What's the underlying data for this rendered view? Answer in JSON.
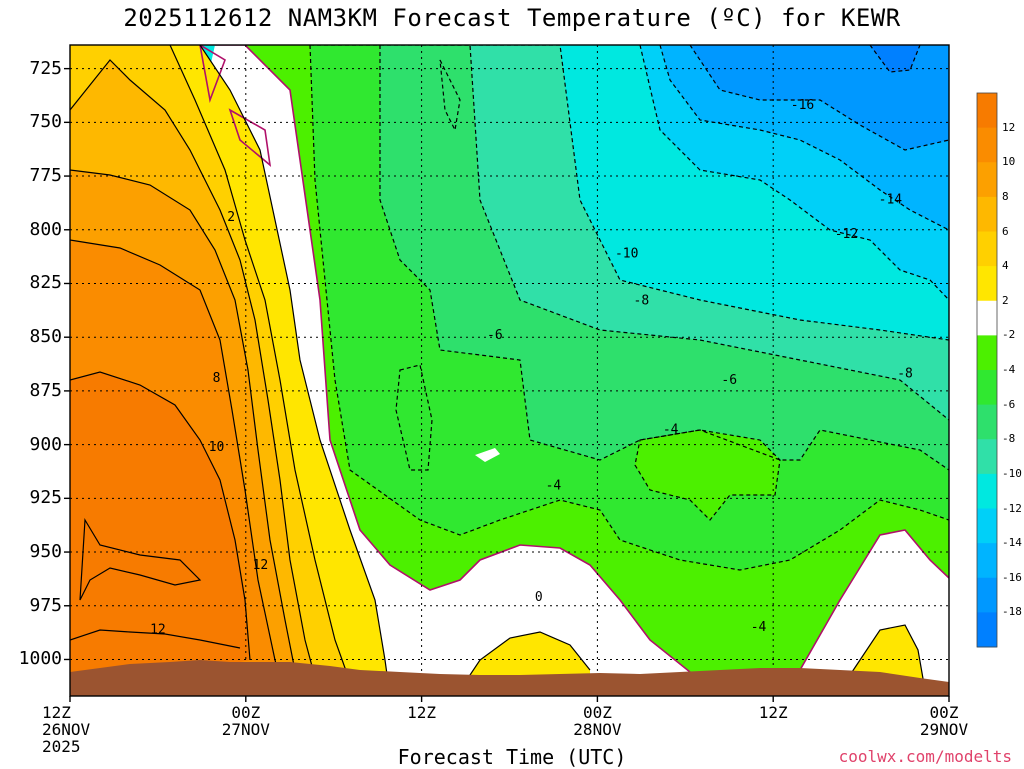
{
  "title": "2025112612 NAM3KM Forecast Temperature (ºC) for KEWR",
  "credit": "coolwx.com/modelts",
  "colors": {
    "terrain": "#9b5430",
    "zero_line": "#b0106a"
  },
  "chart_data": {
    "type": "contour",
    "title": "2025112612 NAM3KM Forecast Temperature (ºC) for KEWR",
    "xlabel": "Forecast Time (UTC)",
    "ylabel": "",
    "x_ticks": [
      {
        "label": "12Z\n26NOV\n2025",
        "hour": 0
      },
      {
        "label": "00Z\n27NOV",
        "hour": 12
      },
      {
        "label": "12Z",
        "hour": 24
      },
      {
        "label": "00Z\n28NOV",
        "hour": 36
      },
      {
        "label": "12Z",
        "hour": 48
      },
      {
        "label": "00Z\n29NOV",
        "hour": 60
      }
    ],
    "xlim": [
      0,
      60
    ],
    "y_ticks": [
      725,
      750,
      775,
      800,
      825,
      850,
      875,
      900,
      925,
      950,
      975,
      1000
    ],
    "ylim": [
      1017,
      714
    ],
    "grid": true,
    "colorbar": {
      "labels": [
        12,
        10,
        8,
        6,
        4,
        2,
        -2,
        -4,
        -6,
        -8,
        -10,
        -12,
        -14,
        -16,
        -18
      ],
      "bins": [
        {
          "range": [
            12,
            14
          ],
          "color": "#f77b00"
        },
        {
          "range": [
            10,
            12
          ],
          "color": "#fa8c00"
        },
        {
          "range": [
            8,
            10
          ],
          "color": "#fca000"
        },
        {
          "range": [
            6,
            8
          ],
          "color": "#feb800"
        },
        {
          "range": [
            4,
            6
          ],
          "color": "#ffd000"
        },
        {
          "range": [
            2,
            4
          ],
          "color": "#ffe600"
        },
        {
          "range": [
            -2,
            2
          ],
          "color": "#ffffff"
        },
        {
          "range": [
            -4,
            -2
          ],
          "color": "#4cf000"
        },
        {
          "range": [
            -6,
            -4
          ],
          "color": "#30e830"
        },
        {
          "range": [
            -8,
            -6
          ],
          "color": "#2ee06c"
        },
        {
          "range": [
            -10,
            -8
          ],
          "color": "#30e0a8"
        },
        {
          "range": [
            -12,
            -10
          ],
          "color": "#00e8e0"
        },
        {
          "range": [
            -14,
            -12
          ],
          "color": "#00d0f8"
        },
        {
          "range": [
            -16,
            -14
          ],
          "color": "#00b4ff"
        },
        {
          "range": [
            -18,
            -16
          ],
          "color": "#0098ff"
        },
        {
          "range": [
            -20,
            -18
          ],
          "color": "#0080ff"
        }
      ]
    },
    "contour_labels": [
      {
        "text": "2",
        "hour": 11,
        "p": 794
      },
      {
        "text": "8",
        "hour": 10,
        "p": 869
      },
      {
        "text": "10",
        "hour": 10,
        "p": 901
      },
      {
        "text": "12",
        "hour": 13,
        "p": 956
      },
      {
        "text": "12",
        "hour": 6,
        "p": 986
      },
      {
        "text": "-6",
        "hour": 29,
        "p": 849
      },
      {
        "text": "-4",
        "hour": 33,
        "p": 919
      },
      {
        "text": "0",
        "hour": 32,
        "p": 971
      },
      {
        "text": "-10",
        "hour": 38,
        "p": 811
      },
      {
        "text": "-8",
        "hour": 39,
        "p": 833
      },
      {
        "text": "-6",
        "hour": 45,
        "p": 870
      },
      {
        "text": "-4",
        "hour": 41,
        "p": 893
      },
      {
        "text": "-4",
        "hour": 47,
        "p": 985
      },
      {
        "text": "-16",
        "hour": 50,
        "p": 742
      },
      {
        "text": "-14",
        "hour": 56,
        "p": 786
      },
      {
        "text": "-12",
        "hour": 53,
        "p": 802
      },
      {
        "text": "-8",
        "hour": 57,
        "p": 867
      }
    ]
  }
}
